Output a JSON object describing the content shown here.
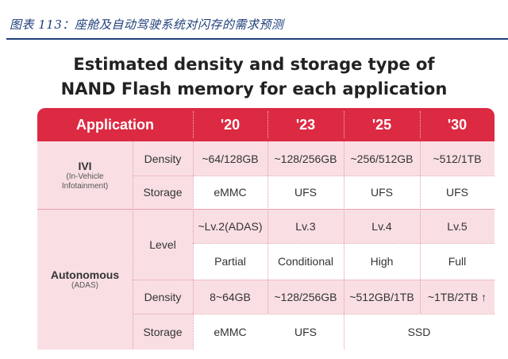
{
  "caption": "图表 113：座舱及自动驾驶系统对闪存的需求预测",
  "title_lines": [
    "Estimated density and storage type of",
    "NAND Flash memory for each application"
  ],
  "header": {
    "application": "Application",
    "years": [
      "'20",
      "'23",
      "'25",
      "'30"
    ]
  },
  "ivi": {
    "name": "IVI",
    "sub_line1": "(In-Vehicle",
    "sub_line2": "Infotainment)",
    "density_label": "Density",
    "density": [
      "~64/128GB",
      "~128/256GB",
      "~256/512GB",
      "~512/1TB"
    ],
    "storage_label": "Storage",
    "storage": [
      "eMMC",
      "UFS",
      "UFS",
      "UFS"
    ]
  },
  "autonomous": {
    "name": "Autonomous",
    "sub": "(ADAS)",
    "level_label": "Level",
    "level": [
      "~Lv.2(ADAS)",
      "Lv.3",
      "Lv.4",
      "Lv.5"
    ],
    "autonomy": [
      "Partial",
      "Conditional",
      "High",
      "Full"
    ],
    "density_label": "Density",
    "density": [
      "8~64GB",
      "~128/256GB",
      "~512GB/1TB",
      "~1TB/2TB ↑"
    ],
    "storage_label": "Storage",
    "storage_first": "eMMC",
    "storage_second": "UFS",
    "storage_rest": "SSD"
  },
  "colors": {
    "header_red": "#dc2a43",
    "pink": "#f9dfe3",
    "caption_blue": "#1f3f7a"
  }
}
